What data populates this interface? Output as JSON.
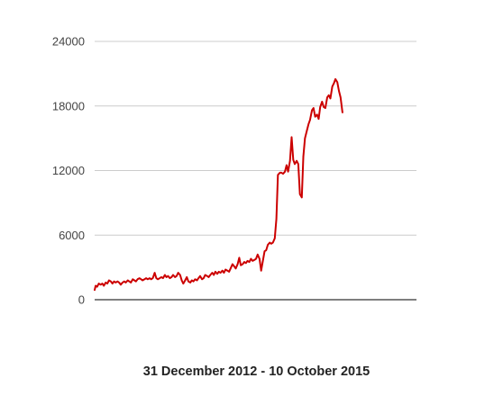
{
  "chart_data": {
    "type": "line",
    "title": "",
    "xlabel": "31 December 2012 - 10 October 2015",
    "ylabel": "",
    "x_range": [
      "2012-12-31",
      "2015-10-10"
    ],
    "ylim": [
      0,
      24000
    ],
    "yticks": [
      0,
      6000,
      12000,
      18000,
      24000
    ],
    "ytick_labels": [
      "0",
      "6000",
      "12000",
      "18000",
      "24000"
    ],
    "grid": true,
    "legend": "none",
    "series": [
      {
        "color": "#cc0000",
        "points": [
          [
            "2012-12-31",
            900
          ],
          [
            "2013-01-03",
            1300
          ],
          [
            "2013-01-08",
            1200
          ],
          [
            "2013-01-13",
            1500
          ],
          [
            "2013-01-19",
            1400
          ],
          [
            "2013-01-24",
            1500
          ],
          [
            "2013-01-29",
            1300
          ],
          [
            "2013-02-04",
            1600
          ],
          [
            "2013-02-09",
            1500
          ],
          [
            "2013-02-14",
            1800
          ],
          [
            "2013-02-20",
            1700
          ],
          [
            "2013-02-25",
            1500
          ],
          [
            "2013-03-02",
            1700
          ],
          [
            "2013-03-07",
            1600
          ],
          [
            "2013-03-13",
            1700
          ],
          [
            "2013-03-18",
            1600
          ],
          [
            "2013-03-23",
            1400
          ],
          [
            "2013-03-29",
            1600
          ],
          [
            "2013-04-03",
            1700
          ],
          [
            "2013-04-08",
            1600
          ],
          [
            "2013-04-14",
            1800
          ],
          [
            "2013-04-19",
            1700
          ],
          [
            "2013-04-24",
            1600
          ],
          [
            "2013-04-30",
            1900
          ],
          [
            "2013-05-05",
            1800
          ],
          [
            "2013-05-10",
            1700
          ],
          [
            "2013-05-15",
            1900
          ],
          [
            "2013-05-21",
            2000
          ],
          [
            "2013-05-26",
            1900
          ],
          [
            "2013-05-31",
            1800
          ],
          [
            "2013-06-06",
            1900
          ],
          [
            "2013-06-11",
            2000
          ],
          [
            "2013-06-16",
            1900
          ],
          [
            "2013-06-22",
            2000
          ],
          [
            "2013-06-27",
            1900
          ],
          [
            "2013-07-02",
            2000
          ],
          [
            "2013-07-08",
            2500
          ],
          [
            "2013-07-13",
            2000
          ],
          [
            "2013-07-18",
            1900
          ],
          [
            "2013-07-24",
            2000
          ],
          [
            "2013-07-29",
            2100
          ],
          [
            "2013-08-03",
            2000
          ],
          [
            "2013-08-09",
            2300
          ],
          [
            "2013-08-14",
            2100
          ],
          [
            "2013-08-19",
            2200
          ],
          [
            "2013-08-25",
            2000
          ],
          [
            "2013-08-30",
            2100
          ],
          [
            "2013-09-04",
            2300
          ],
          [
            "2013-09-10",
            2100
          ],
          [
            "2013-09-15",
            2200
          ],
          [
            "2013-09-20",
            2500
          ],
          [
            "2013-09-26",
            2300
          ],
          [
            "2013-10-01",
            1800
          ],
          [
            "2013-10-06",
            1500
          ],
          [
            "2013-10-12",
            1800
          ],
          [
            "2013-10-17",
            2100
          ],
          [
            "2013-10-22",
            1700
          ],
          [
            "2013-10-28",
            1600
          ],
          [
            "2013-11-02",
            1800
          ],
          [
            "2013-11-07",
            1700
          ],
          [
            "2013-11-12",
            1900
          ],
          [
            "2013-11-18",
            1800
          ],
          [
            "2013-11-23",
            2000
          ],
          [
            "2013-11-28",
            2200
          ],
          [
            "2013-12-04",
            1900
          ],
          [
            "2013-12-09",
            2000
          ],
          [
            "2013-12-14",
            2300
          ],
          [
            "2013-12-20",
            2200
          ],
          [
            "2013-12-25",
            2100
          ],
          [
            "2013-12-30",
            2300
          ],
          [
            "2014-01-05",
            2500
          ],
          [
            "2014-01-10",
            2300
          ],
          [
            "2014-01-15",
            2600
          ],
          [
            "2014-01-21",
            2400
          ],
          [
            "2014-01-26",
            2600
          ],
          [
            "2014-01-31",
            2500
          ],
          [
            "2014-02-06",
            2700
          ],
          [
            "2014-02-11",
            2500
          ],
          [
            "2014-02-16",
            2800
          ],
          [
            "2014-02-22",
            2700
          ],
          [
            "2014-02-27",
            2600
          ],
          [
            "2014-03-04",
            2900
          ],
          [
            "2014-03-10",
            3300
          ],
          [
            "2014-03-15",
            3100
          ],
          [
            "2014-03-20",
            2900
          ],
          [
            "2014-03-26",
            3300
          ],
          [
            "2014-03-31",
            3900
          ],
          [
            "2014-04-05",
            3200
          ],
          [
            "2014-04-11",
            3300
          ],
          [
            "2014-04-16",
            3500
          ],
          [
            "2014-04-21",
            3400
          ],
          [
            "2014-04-26",
            3600
          ],
          [
            "2014-05-02",
            3500
          ],
          [
            "2014-05-07",
            3800
          ],
          [
            "2014-05-12",
            3600
          ],
          [
            "2014-05-18",
            3700
          ],
          [
            "2014-05-23",
            3800
          ],
          [
            "2014-05-28",
            4200
          ],
          [
            "2014-06-03",
            3800
          ],
          [
            "2014-06-08",
            2700
          ],
          [
            "2014-06-13",
            3500
          ],
          [
            "2014-06-19",
            4500
          ],
          [
            "2014-06-24",
            4600
          ],
          [
            "2014-06-29",
            5100
          ],
          [
            "2014-07-05",
            5300
          ],
          [
            "2014-07-10",
            5200
          ],
          [
            "2014-07-15",
            5300
          ],
          [
            "2014-07-21",
            5700
          ],
          [
            "2014-07-26",
            7500
          ],
          [
            "2014-07-31",
            11600
          ],
          [
            "2014-08-06",
            11800
          ],
          [
            "2014-08-11",
            11800
          ],
          [
            "2014-08-16",
            11700
          ],
          [
            "2014-08-22",
            11900
          ],
          [
            "2014-08-27",
            12500
          ],
          [
            "2014-09-01",
            11900
          ],
          [
            "2014-09-07",
            12900
          ],
          [
            "2014-09-12",
            15100
          ],
          [
            "2014-09-17",
            13000
          ],
          [
            "2014-09-22",
            12600
          ],
          [
            "2014-09-28",
            12900
          ],
          [
            "2014-10-03",
            12600
          ],
          [
            "2014-10-08",
            9800
          ],
          [
            "2014-10-14",
            9500
          ],
          [
            "2014-10-19",
            13300
          ],
          [
            "2014-10-24",
            15000
          ],
          [
            "2014-10-30",
            15700
          ],
          [
            "2014-11-04",
            16300
          ],
          [
            "2014-11-09",
            16700
          ],
          [
            "2014-11-15",
            17600
          ],
          [
            "2014-11-20",
            17800
          ],
          [
            "2014-11-25",
            17000
          ],
          [
            "2014-12-01",
            17200
          ],
          [
            "2014-12-06",
            16800
          ],
          [
            "2014-12-11",
            17900
          ],
          [
            "2014-12-17",
            18400
          ],
          [
            "2014-12-22",
            17900
          ],
          [
            "2014-12-27",
            17800
          ],
          [
            "2015-01-02",
            18800
          ],
          [
            "2015-01-07",
            19000
          ],
          [
            "2015-01-12",
            18700
          ],
          [
            "2015-01-18",
            19800
          ],
          [
            "2015-01-23",
            20100
          ],
          [
            "2015-01-28",
            20500
          ],
          [
            "2015-02-03",
            20200
          ],
          [
            "2015-02-08",
            19400
          ],
          [
            "2015-02-13",
            18800
          ],
          [
            "2015-02-19",
            17400
          ]
        ]
      }
    ]
  }
}
